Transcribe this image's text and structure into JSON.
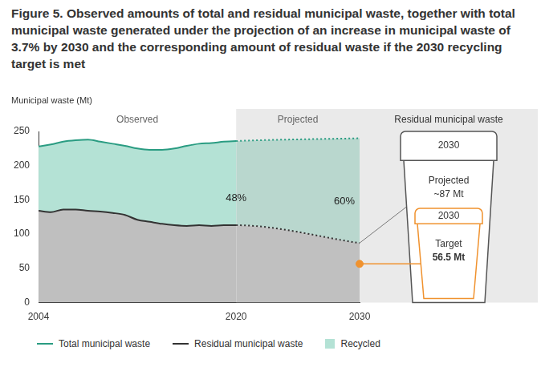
{
  "chart_data": {
    "type": "line",
    "title": "Figure 5. Observed amounts of total and residual municipal waste, together with total municipal waste generated under the projection of an increase in municipal waste of 3.7% by 2030 and the corresponding amount of residual waste if the 2030 recycling target is met",
    "y_label": "Municipal waste (Mt)",
    "x": [
      2004,
      2005,
      2006,
      2007,
      2008,
      2009,
      2010,
      2011,
      2012,
      2013,
      2014,
      2015,
      2016,
      2017,
      2018,
      2019,
      2020,
      2030
    ],
    "series": [
      {
        "name": "Total municipal waste",
        "color": "#2a9c82",
        "values": [
          228,
          231,
          235,
          237,
          238,
          235,
          232,
          229,
          225,
          223,
          223,
          225,
          229,
          232,
          233,
          235,
          236,
          240
        ]
      },
      {
        "name": "Residual municipal waste",
        "color": "#333333",
        "values": [
          134,
          132,
          136,
          136,
          134,
          133,
          131,
          128,
          121,
          118,
          115,
          113,
          112,
          113,
          112,
          113,
          113,
          87
        ]
      }
    ],
    "areas": [
      {
        "name": "Recycled",
        "color": "#b4e2d5",
        "between": [
          "Total municipal waste",
          "Residual municipal waste"
        ]
      }
    ],
    "periods": [
      {
        "label": "Observed",
        "from": 2004,
        "to": 2020,
        "line_style": "solid"
      },
      {
        "label": "Projected",
        "from": 2020,
        "to": 2030,
        "line_style": "dotted"
      }
    ],
    "rate_labels": [
      {
        "x": 2020,
        "value": 48,
        "label": "48%"
      },
      {
        "x": 2030,
        "value": 60,
        "label": "60%"
      }
    ],
    "residual_2030": {
      "title": "Residual municipal waste",
      "projected": {
        "year": "2030",
        "label": "Projected",
        "value": 87,
        "value_label": "~87 Mt"
      },
      "target": {
        "year": "2030",
        "label": "Target",
        "x": 2030,
        "value": 56.5,
        "value_label": "56.5 Mt",
        "color": "#f0922e"
      }
    },
    "xlim": [
      2004,
      2030
    ],
    "xticks": [
      2004,
      2020,
      2030
    ],
    "ylim": [
      0,
      250
    ],
    "yticks": [
      0,
      50,
      100,
      150,
      200,
      250
    ],
    "grid": false,
    "legend": "bottom"
  }
}
